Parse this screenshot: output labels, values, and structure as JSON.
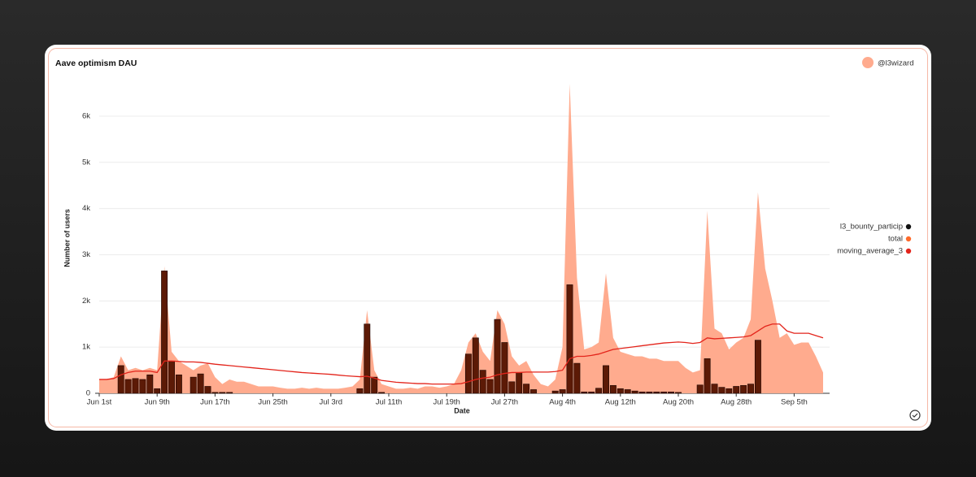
{
  "author": "@l3wizard",
  "chart_data": {
    "type": "combo",
    "title": "Aave optimism DAU",
    "x_label": "Date",
    "y_label": "Number of users",
    "categories": [
      "Jun 1st",
      null,
      null,
      null,
      null,
      null,
      null,
      null,
      "Jun 9th",
      null,
      null,
      null,
      null,
      null,
      null,
      null,
      "Jun 17th",
      null,
      null,
      null,
      null,
      null,
      null,
      null,
      "Jun 25th",
      null,
      null,
      null,
      null,
      null,
      null,
      null,
      "Jul 3rd",
      null,
      null,
      null,
      null,
      null,
      null,
      null,
      "Jul 11th",
      null,
      null,
      null,
      null,
      null,
      null,
      null,
      "Jul 19th",
      null,
      null,
      null,
      null,
      null,
      null,
      null,
      "Jul 27th",
      null,
      null,
      null,
      null,
      null,
      null,
      null,
      "Aug 4th",
      null,
      null,
      null,
      null,
      null,
      null,
      null,
      "Aug 12th",
      null,
      null,
      null,
      null,
      null,
      null,
      null,
      "Aug 20th",
      null,
      null,
      null,
      null,
      null,
      null,
      null,
      "Aug 28th",
      null,
      null,
      null,
      null,
      null,
      null,
      null,
      "Sep 5th",
      null,
      null,
      null,
      null
    ],
    "series": [
      {
        "name": "l3_bounty_particip",
        "type": "bar",
        "color": "#5c1a06",
        "legend_color": "#111111",
        "values": [
          0,
          0,
          0,
          600,
          300,
          320,
          300,
          400,
          100,
          2650,
          700,
          400,
          0,
          350,
          420,
          150,
          20,
          20,
          20,
          0,
          0,
          0,
          0,
          0,
          0,
          0,
          0,
          0,
          0,
          0,
          0,
          0,
          0,
          0,
          0,
          0,
          100,
          1500,
          350,
          20,
          0,
          0,
          0,
          0,
          0,
          0,
          0,
          0,
          0,
          0,
          0,
          850,
          1200,
          500,
          300,
          1600,
          1100,
          250,
          450,
          200,
          80,
          0,
          0,
          50,
          80,
          2350,
          650,
          30,
          30,
          110,
          600,
          170,
          100,
          80,
          50,
          30,
          30,
          30,
          30,
          30,
          20,
          0,
          0,
          180,
          750,
          200,
          130,
          100,
          150,
          170,
          200,
          1150,
          0,
          0,
          0,
          0,
          0,
          0,
          0,
          0,
          0
        ]
      },
      {
        "name": "total",
        "type": "area",
        "color": "#ffab8e",
        "legend_color": "#ff6a2a",
        "values": [
          300,
          300,
          350,
          800,
          500,
          550,
          500,
          550,
          500,
          2750,
          900,
          700,
          600,
          500,
          600,
          650,
          350,
          200,
          300,
          250,
          250,
          200,
          150,
          150,
          150,
          120,
          100,
          100,
          120,
          100,
          120,
          100,
          100,
          100,
          120,
          150,
          300,
          1800,
          500,
          200,
          150,
          100,
          100,
          120,
          100,
          150,
          150,
          120,
          150,
          200,
          500,
          1100,
          1300,
          900,
          700,
          1800,
          1500,
          800,
          600,
          700,
          400,
          200,
          150,
          300,
          1000,
          6700,
          2500,
          950,
          1000,
          1100,
          2600,
          1200,
          900,
          850,
          800,
          800,
          750,
          750,
          700,
          700,
          700,
          550,
          450,
          500,
          3950,
          1400,
          1300,
          950,
          1100,
          1200,
          1600,
          4350,
          2700,
          2000,
          1200,
          1300,
          1050,
          1100,
          1100,
          800,
          450
        ]
      },
      {
        "name": "moving_average_3",
        "type": "line",
        "color": "#e3241b",
        "legend_color": "#e3241b",
        "values": [
          300,
          300,
          320,
          400,
          450,
          480,
          480,
          480,
          450,
          700,
          700,
          690,
          680,
          680,
          670,
          650,
          630,
          615,
          600,
          585,
          570,
          555,
          540,
          525,
          510,
          495,
          480,
          465,
          450,
          440,
          430,
          420,
          410,
          395,
          380,
          370,
          360,
          370,
          330,
          280,
          260,
          240,
          230,
          220,
          210,
          210,
          200,
          200,
          200,
          200,
          210,
          250,
          300,
          330,
          350,
          400,
          430,
          450,
          450,
          460,
          460,
          460,
          460,
          470,
          500,
          750,
          800,
          800,
          820,
          850,
          900,
          950,
          970,
          990,
          1010,
          1030,
          1050,
          1070,
          1090,
          1100,
          1110,
          1100,
          1080,
          1100,
          1200,
          1180,
          1190,
          1200,
          1210,
          1220,
          1250,
          1350,
          1450,
          1500,
          1500,
          1350,
          1300,
          1300,
          1300,
          1250,
          1200
        ]
      }
    ],
    "ylim": [
      0,
      6800
    ],
    "yticks": [
      0,
      {
        "value": 1000,
        "label": "1k"
      },
      {
        "value": 2000,
        "label": "2k"
      },
      {
        "value": 3000,
        "label": "3k"
      },
      {
        "value": 4000,
        "label": "4k"
      },
      {
        "value": 5000,
        "label": "5k"
      },
      {
        "value": 6000,
        "label": "6k"
      }
    ],
    "grid": true
  }
}
